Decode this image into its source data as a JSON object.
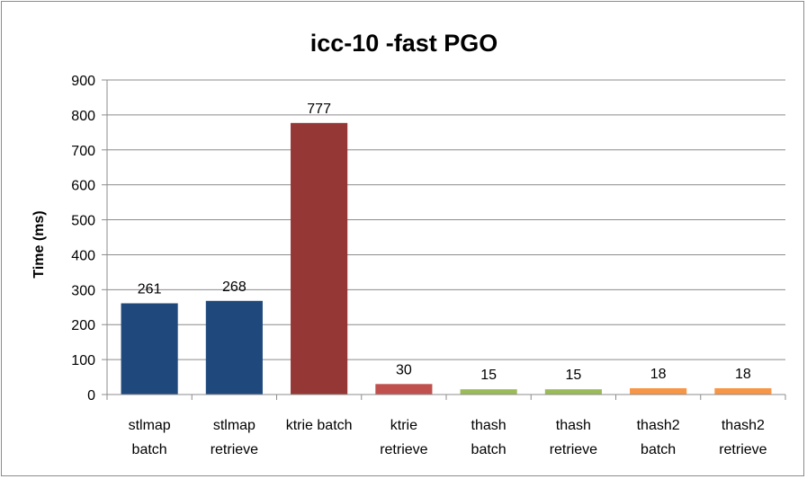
{
  "chart_data": {
    "type": "bar",
    "title": "icc-10 -fast PGO",
    "xlabel": "",
    "ylabel": "Time (ms)",
    "ylim": [
      0,
      900
    ],
    "yticks": [
      0,
      100,
      200,
      300,
      400,
      500,
      600,
      700,
      800,
      900
    ],
    "grid": true,
    "legend": "none",
    "categories": [
      [
        "stlmap",
        "batch"
      ],
      [
        "stlmap",
        "retrieve"
      ],
      [
        "ktrie batch"
      ],
      [
        "ktrie",
        "retrieve"
      ],
      [
        "thash",
        "batch"
      ],
      [
        "thash",
        "retrieve"
      ],
      [
        "thash2",
        "batch"
      ],
      [
        "thash2",
        "retrieve"
      ]
    ],
    "values": [
      261,
      268,
      777,
      30,
      15,
      15,
      18,
      18
    ],
    "data_labels": [
      "261",
      "268",
      "777",
      "30",
      "15",
      "15",
      "18",
      "18"
    ],
    "colors": [
      "#1f497d",
      "#1f497d",
      "#953735",
      "#c0504d",
      "#9bbb59",
      "#9bbb59",
      "#f79646",
      "#f79646"
    ]
  }
}
